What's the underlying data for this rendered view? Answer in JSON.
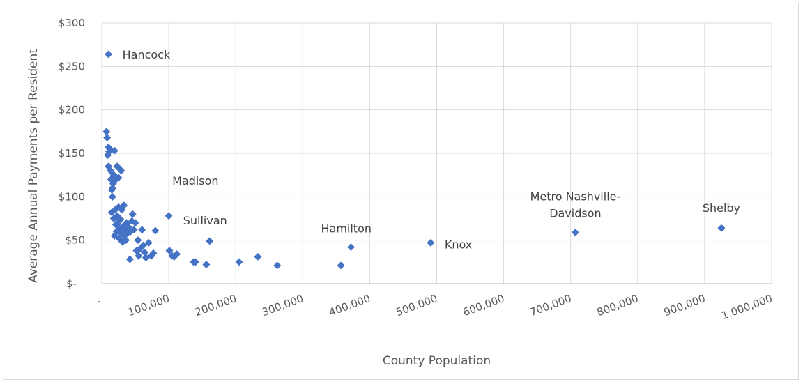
{
  "chart_data": {
    "type": "scatter",
    "title": "",
    "xlabel": "County Population",
    "ylabel": "Average Annual Payments per Resident",
    "xlim": [
      0,
      1000000
    ],
    "ylim": [
      0,
      300
    ],
    "x_ticks": [
      0,
      100000,
      200000,
      300000,
      400000,
      500000,
      600000,
      700000,
      800000,
      900000,
      1000000
    ],
    "x_tick_labels": [
      "-",
      "100,000",
      "200,000",
      "300,000",
      "400,000",
      "500,000",
      "600,000",
      "700,000",
      "800,000",
      "900,000",
      "1,000,000"
    ],
    "y_ticks": [
      0,
      50,
      100,
      150,
      200,
      250,
      300
    ],
    "y_tick_labels": [
      "$-",
      "$50",
      "$100",
      "$150",
      "$200",
      "$250",
      "$300"
    ],
    "grid": true,
    "legend": "none",
    "marker_color": "#4472c4",
    "points": [
      {
        "x": 7000,
        "y": 175
      },
      {
        "x": 8000,
        "y": 168
      },
      {
        "x": 9000,
        "y": 148
      },
      {
        "x": 10000,
        "y": 157
      },
      {
        "x": 11000,
        "y": 152
      },
      {
        "x": 12000,
        "y": 155
      },
      {
        "x": 14000,
        "y": 120
      },
      {
        "x": 15000,
        "y": 108
      },
      {
        "x": 16000,
        "y": 100
      },
      {
        "x": 17000,
        "y": 115
      },
      {
        "x": 18000,
        "y": 125
      },
      {
        "x": 19000,
        "y": 153
      },
      {
        "x": 10000,
        "y": 135
      },
      {
        "x": 13000,
        "y": 130
      },
      {
        "x": 16000,
        "y": 110
      },
      {
        "x": 21000,
        "y": 120
      },
      {
        "x": 23000,
        "y": 135
      },
      {
        "x": 25000,
        "y": 122
      },
      {
        "x": 27000,
        "y": 132
      },
      {
        "x": 29000,
        "y": 130
      },
      {
        "x": 15000,
        "y": 82
      },
      {
        "x": 18000,
        "y": 75
      },
      {
        "x": 19000,
        "y": 55
      },
      {
        "x": 20000,
        "y": 85
      },
      {
        "x": 21000,
        "y": 68
      },
      {
        "x": 22000,
        "y": 60
      },
      {
        "x": 23000,
        "y": 78
      },
      {
        "x": 24000,
        "y": 70
      },
      {
        "x": 25000,
        "y": 88
      },
      {
        "x": 26000,
        "y": 52
      },
      {
        "x": 27000,
        "y": 64
      },
      {
        "x": 28000,
        "y": 74
      },
      {
        "x": 29000,
        "y": 58
      },
      {
        "x": 30000,
        "y": 85
      },
      {
        "x": 31000,
        "y": 48
      },
      {
        "x": 32000,
        "y": 66
      },
      {
        "x": 33000,
        "y": 90
      },
      {
        "x": 34000,
        "y": 55
      },
      {
        "x": 35000,
        "y": 62
      },
      {
        "x": 36000,
        "y": 50
      },
      {
        "x": 37000,
        "y": 70
      },
      {
        "x": 38000,
        "y": 58
      },
      {
        "x": 40000,
        "y": 65
      },
      {
        "x": 42000,
        "y": 28
      },
      {
        "x": 43000,
        "y": 60
      },
      {
        "x": 45000,
        "y": 72
      },
      {
        "x": 46000,
        "y": 80
      },
      {
        "x": 48000,
        "y": 62
      },
      {
        "x": 50000,
        "y": 70
      },
      {
        "x": 52000,
        "y": 38
      },
      {
        "x": 54000,
        "y": 50
      },
      {
        "x": 55000,
        "y": 32
      },
      {
        "x": 57000,
        "y": 40
      },
      {
        "x": 60000,
        "y": 62
      },
      {
        "x": 62000,
        "y": 44
      },
      {
        "x": 64000,
        "y": 36
      },
      {
        "x": 66000,
        "y": 30
      },
      {
        "x": 70000,
        "y": 47
      },
      {
        "x": 74000,
        "y": 32
      },
      {
        "x": 77000,
        "y": 35
      },
      {
        "x": 80000,
        "y": 61
      },
      {
        "x": 100000,
        "y": 78
      },
      {
        "x": 101000,
        "y": 38
      },
      {
        "x": 105000,
        "y": 32
      },
      {
        "x": 108000,
        "y": 31
      },
      {
        "x": 112000,
        "y": 34
      },
      {
        "x": 137000,
        "y": 25
      },
      {
        "x": 140000,
        "y": 25
      },
      {
        "x": 156000,
        "y": 22
      },
      {
        "x": 161000,
        "y": 49
      },
      {
        "x": 205000,
        "y": 25
      },
      {
        "x": 233000,
        "y": 31
      },
      {
        "x": 262000,
        "y": 21
      },
      {
        "x": 357000,
        "y": 21
      },
      {
        "x": 372000,
        "y": 42
      },
      {
        "x": 491000,
        "y": 47
      },
      {
        "x": 707000,
        "y": 59
      },
      {
        "x": 925000,
        "y": 64
      },
      {
        "x": 10000,
        "y": 264
      }
    ],
    "annotations": [
      {
        "text": "Hancock",
        "x": 10000,
        "y": 264
      },
      {
        "text": "Madison",
        "x": 100000,
        "y": 78
      },
      {
        "text": "Sullivan",
        "x": 161000,
        "y": 49
      },
      {
        "text": "Hamilton",
        "x": 372000,
        "y": 42
      },
      {
        "text": "Knox",
        "x": 491000,
        "y": 47
      },
      {
        "text": "Metro Nashville-",
        "x": 707000,
        "y": 59
      },
      {
        "text": "Davidson",
        "x": 707000,
        "y": 59
      },
      {
        "text": "Shelby",
        "x": 925000,
        "y": 64
      }
    ]
  }
}
